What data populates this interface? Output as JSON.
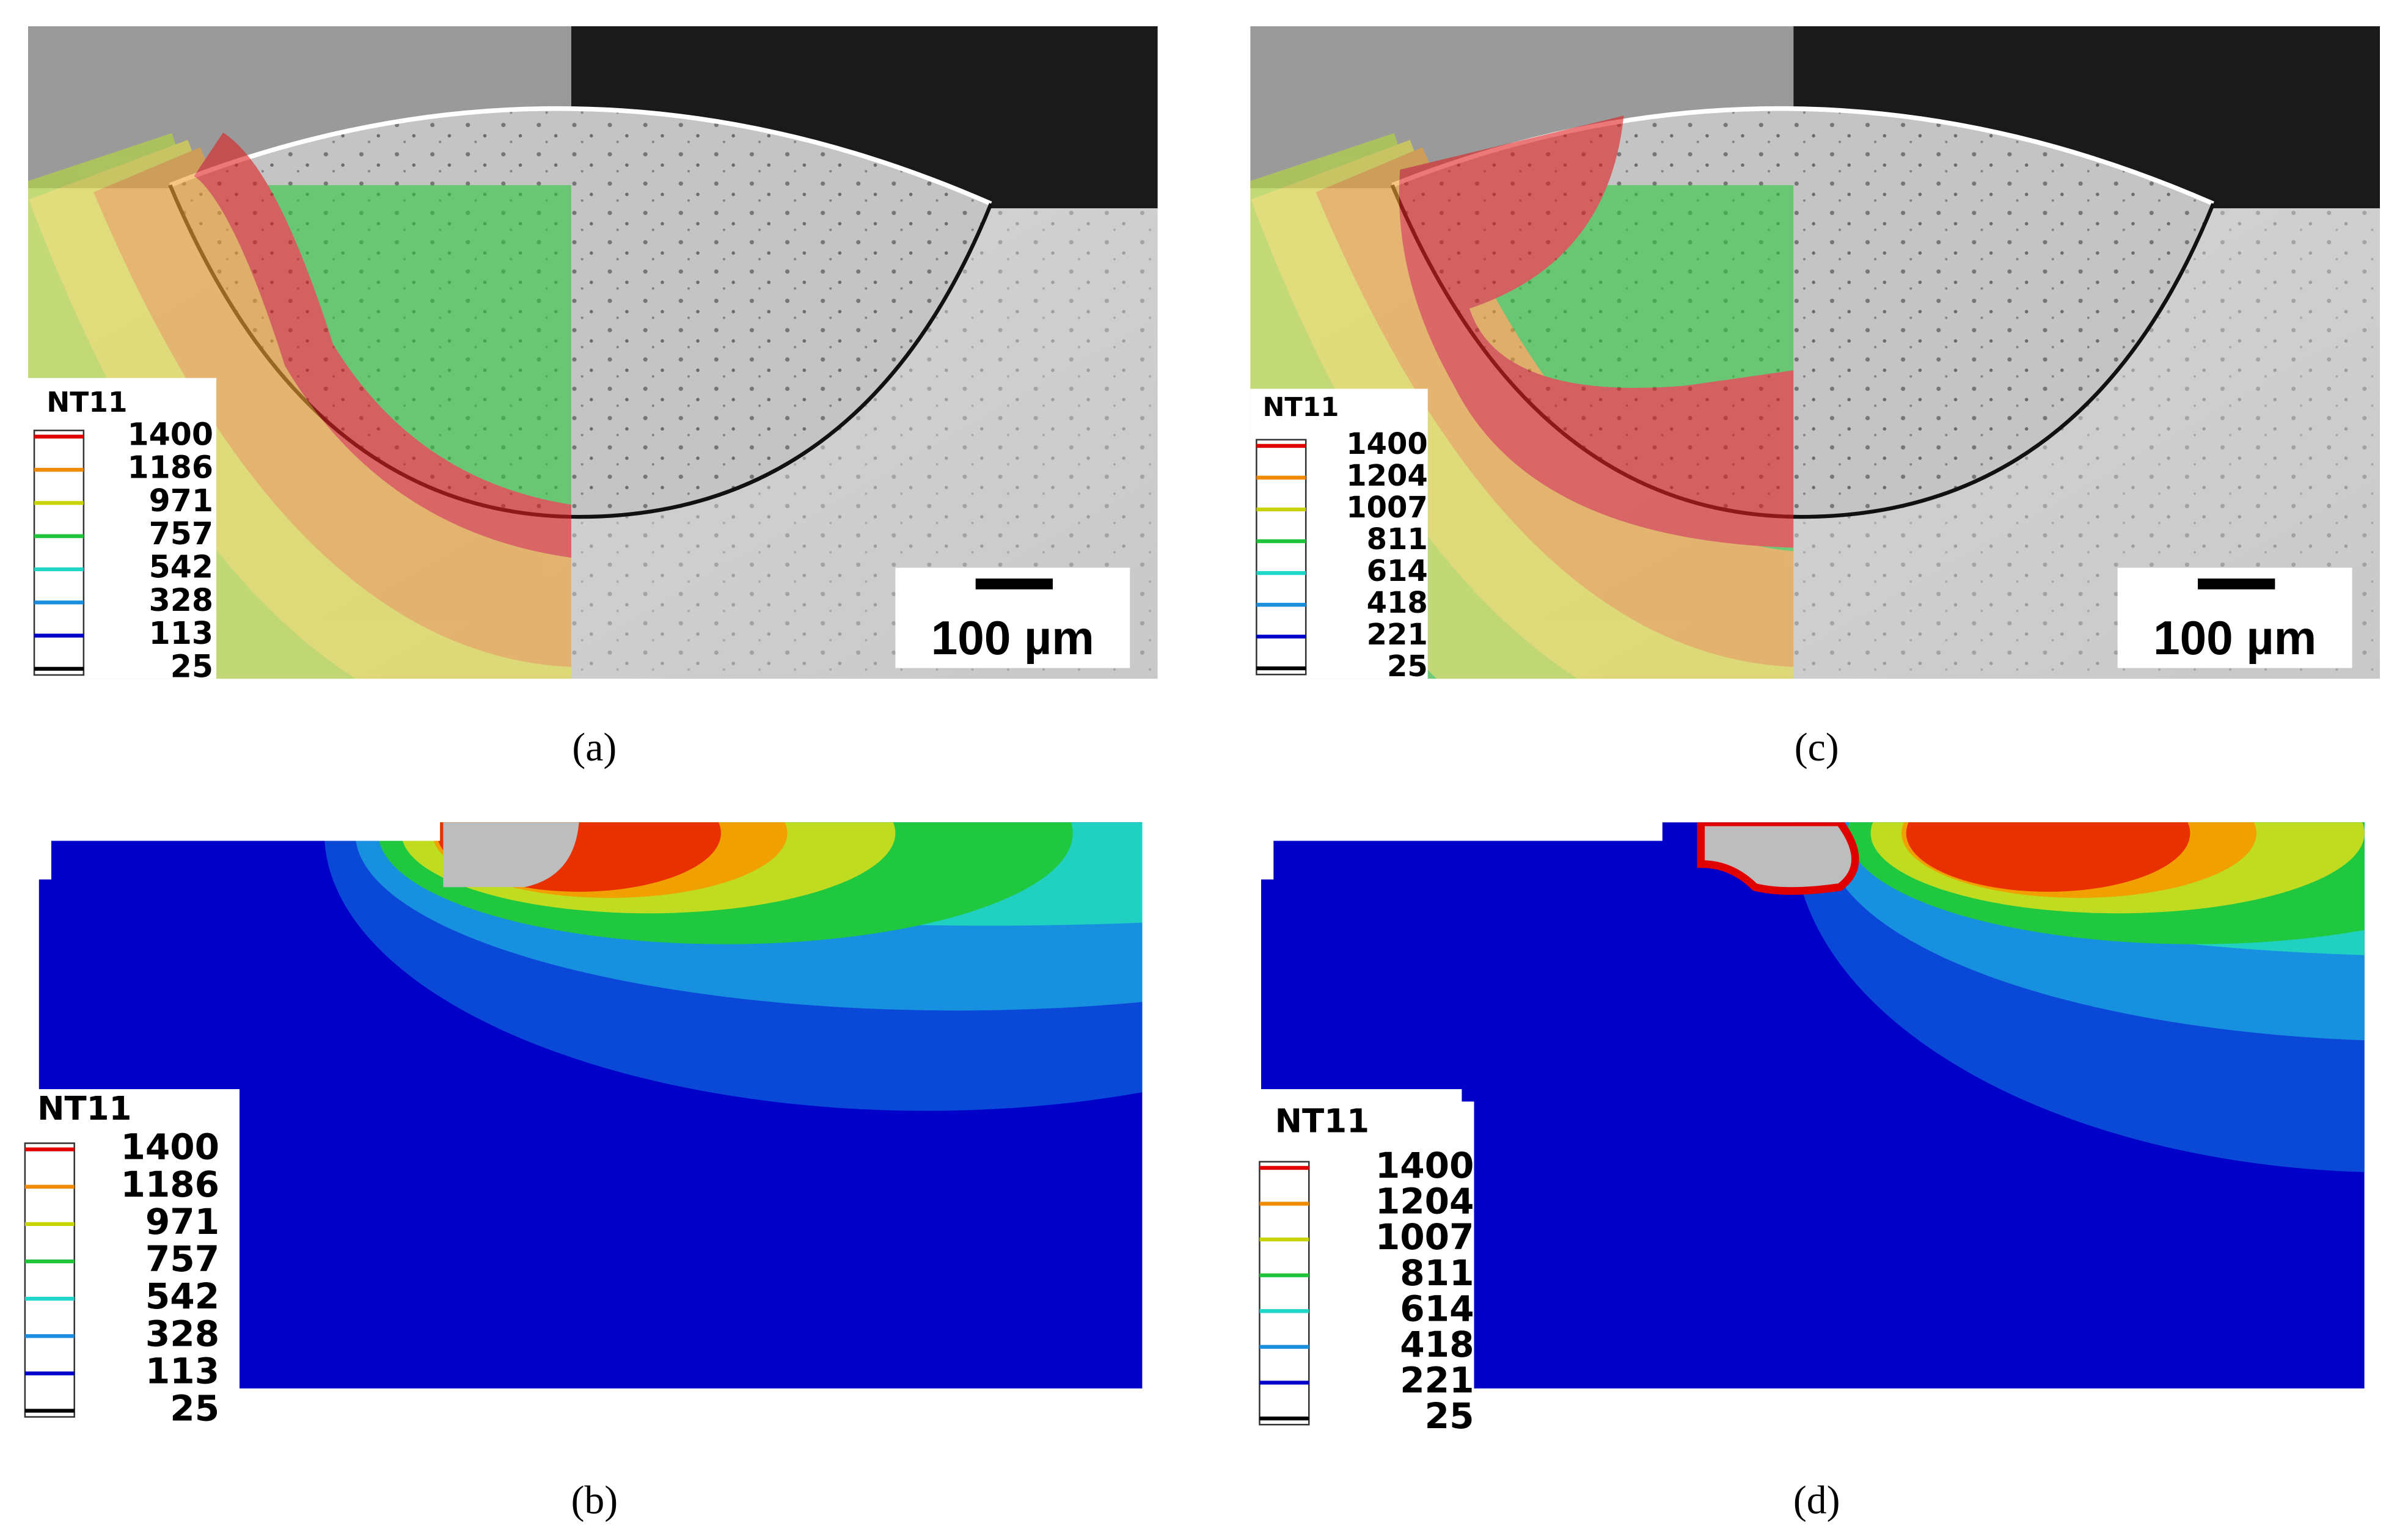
{
  "panels": [
    {
      "caption": "(a)",
      "legend": {
        "title": "NT11",
        "values": [
          1400,
          1186,
          971,
          757,
          542,
          328,
          113,
          25
        ]
      },
      "scale_bar": "100 µm"
    },
    {
      "caption": "(b)",
      "legend": {
        "title": "NT11",
        "values": [
          1400,
          1186,
          971,
          757,
          542,
          328,
          113,
          25
        ]
      }
    },
    {
      "caption": "(c)",
      "legend": {
        "title": "NT11",
        "values": [
          1400,
          1204,
          1007,
          811,
          614,
          418,
          221,
          25
        ]
      },
      "scale_bar": "100 µm"
    },
    {
      "caption": "(d)",
      "legend": {
        "title": "NT11",
        "values": [
          1400,
          1204,
          1007,
          811,
          614,
          418,
          221,
          25
        ]
      }
    }
  ]
}
